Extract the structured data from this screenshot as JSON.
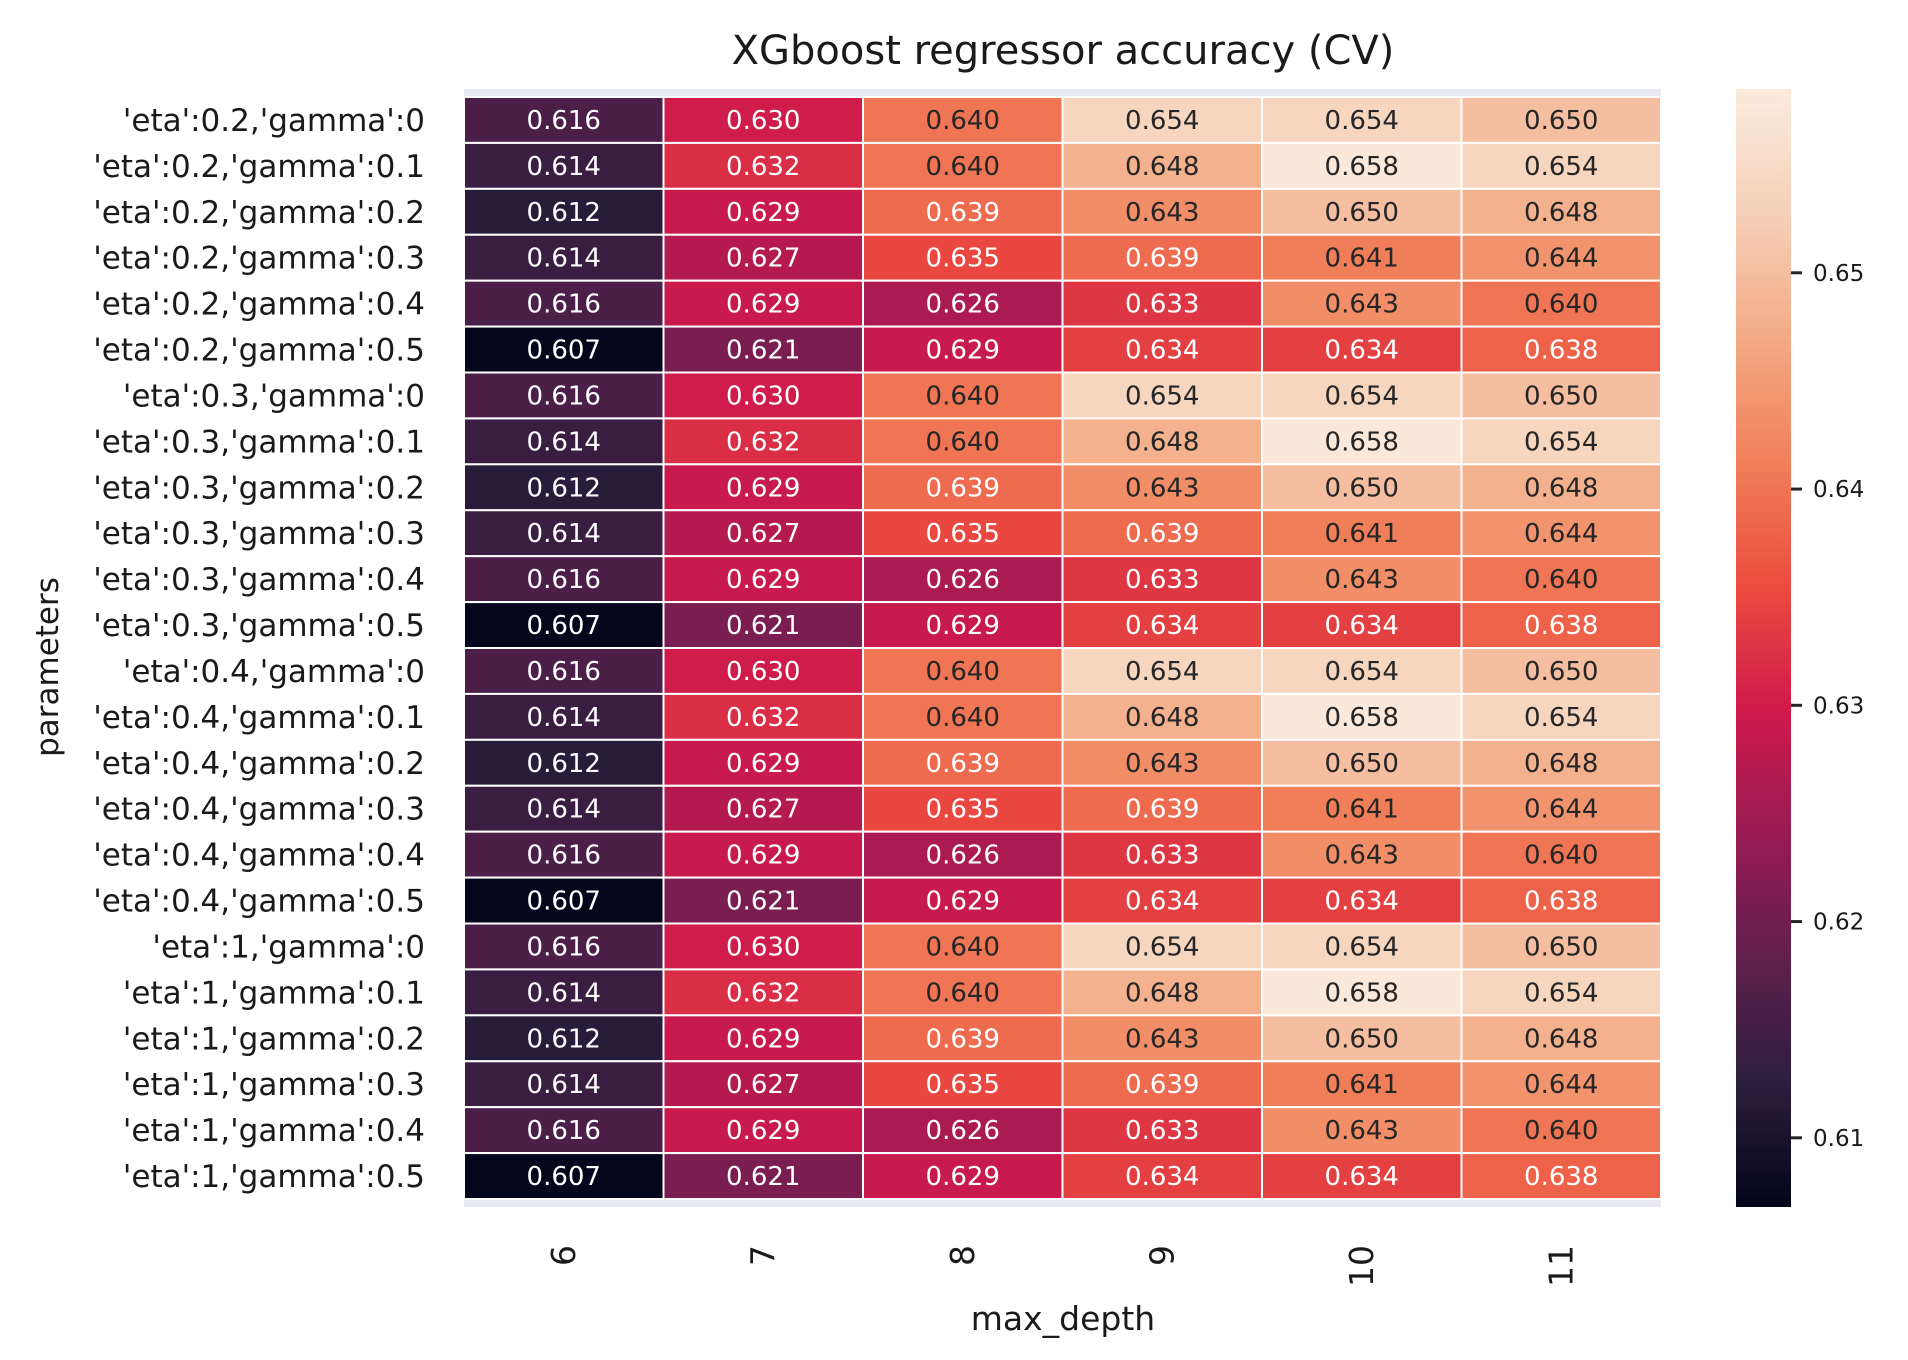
{
  "chart_data": {
    "type": "heatmap",
    "title": "XGboost regressor accuracy (CV)",
    "xlabel": "max_depth",
    "ylabel": "parameters",
    "x_categories": [
      "6",
      "7",
      "8",
      "9",
      "10",
      "11"
    ],
    "y_categories": [
      "'eta':0.2,'gamma':0",
      "'eta':0.2,'gamma':0.1",
      "'eta':0.2,'gamma':0.2",
      "'eta':0.2,'gamma':0.3",
      "'eta':0.2,'gamma':0.4",
      "'eta':0.2,'gamma':0.5",
      "'eta':0.3,'gamma':0",
      "'eta':0.3,'gamma':0.1",
      "'eta':0.3,'gamma':0.2",
      "'eta':0.3,'gamma':0.3",
      "'eta':0.3,'gamma':0.4",
      "'eta':0.3,'gamma':0.5",
      "'eta':0.4,'gamma':0",
      "'eta':0.4,'gamma':0.1",
      "'eta':0.4,'gamma':0.2",
      "'eta':0.4,'gamma':0.3",
      "'eta':0.4,'gamma':0.4",
      "'eta':0.4,'gamma':0.5",
      "'eta':1,'gamma':0",
      "'eta':1,'gamma':0.1",
      "'eta':1,'gamma':0.2",
      "'eta':1,'gamma':0.3",
      "'eta':1,'gamma':0.4",
      "'eta':1,'gamma':0.5"
    ],
    "values": [
      [
        0.616,
        0.63,
        0.64,
        0.654,
        0.654,
        0.65
      ],
      [
        0.614,
        0.632,
        0.64,
        0.648,
        0.658,
        0.654
      ],
      [
        0.612,
        0.629,
        0.639,
        0.643,
        0.65,
        0.648
      ],
      [
        0.614,
        0.627,
        0.635,
        0.639,
        0.641,
        0.644
      ],
      [
        0.616,
        0.629,
        0.626,
        0.633,
        0.643,
        0.64
      ],
      [
        0.607,
        0.621,
        0.629,
        0.634,
        0.634,
        0.638
      ],
      [
        0.616,
        0.63,
        0.64,
        0.654,
        0.654,
        0.65
      ],
      [
        0.614,
        0.632,
        0.64,
        0.648,
        0.658,
        0.654
      ],
      [
        0.612,
        0.629,
        0.639,
        0.643,
        0.65,
        0.648
      ],
      [
        0.614,
        0.627,
        0.635,
        0.639,
        0.641,
        0.644
      ],
      [
        0.616,
        0.629,
        0.626,
        0.633,
        0.643,
        0.64
      ],
      [
        0.607,
        0.621,
        0.629,
        0.634,
        0.634,
        0.638
      ],
      [
        0.616,
        0.63,
        0.64,
        0.654,
        0.654,
        0.65
      ],
      [
        0.614,
        0.632,
        0.64,
        0.648,
        0.658,
        0.654
      ],
      [
        0.612,
        0.629,
        0.639,
        0.643,
        0.65,
        0.648
      ],
      [
        0.614,
        0.627,
        0.635,
        0.639,
        0.641,
        0.644
      ],
      [
        0.616,
        0.629,
        0.626,
        0.633,
        0.643,
        0.64
      ],
      [
        0.607,
        0.621,
        0.629,
        0.634,
        0.634,
        0.638
      ],
      [
        0.616,
        0.63,
        0.64,
        0.654,
        0.654,
        0.65
      ],
      [
        0.614,
        0.632,
        0.64,
        0.648,
        0.658,
        0.654
      ],
      [
        0.612,
        0.629,
        0.639,
        0.643,
        0.65,
        0.648
      ],
      [
        0.614,
        0.627,
        0.635,
        0.639,
        0.641,
        0.644
      ],
      [
        0.616,
        0.629,
        0.626,
        0.633,
        0.643,
        0.64
      ],
      [
        0.607,
        0.621,
        0.629,
        0.634,
        0.634,
        0.638
      ]
    ],
    "value_format": "3 decimals",
    "colorbar": {
      "range": [
        0.6068,
        0.6585
      ],
      "ticks": [
        0.61,
        0.62,
        0.63,
        0.64,
        0.65
      ],
      "tick_labels": [
        "0.61",
        "0.62",
        "0.63",
        "0.64",
        "0.65"
      ],
      "colormap": "rocket",
      "placement": "right"
    },
    "colormap_stops": [
      "#03051a",
      "#2c1e3e",
      "#601f4f",
      "#981b54",
      "#cf1a4b",
      "#ec4c3e",
      "#f0805a",
      "#f3aa85",
      "#f6d0b8",
      "#faebdd"
    ],
    "grid": false
  }
}
